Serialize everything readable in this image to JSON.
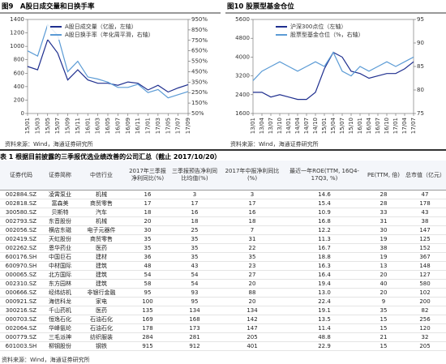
{
  "chart_data": [
    {
      "type": "line",
      "title": "图9　A股日成交量和日换手率",
      "categories": [
        "15/01",
        "15/03",
        "15/05",
        "15/07",
        "15/09",
        "15/11",
        "16/01",
        "16/03",
        "16/05",
        "16/07",
        "16/09",
        "16/11",
        "17/01",
        "17/03",
        "17/05",
        "17/07",
        "17/09"
      ],
      "series": [
        {
          "name": "A股日成交量（亿股，左轴）",
          "color": "#1f2f8f",
          "values": [
            700,
            650,
            1100,
            900,
            500,
            650,
            500,
            450,
            450,
            420,
            470,
            450,
            350,
            420,
            320,
            380,
            430
          ]
        },
        {
          "name": "A股日换手率（年化周平滑，右轴）",
          "color": "#5b9bd5",
          "axis": "y2",
          "values": [
            650,
            600,
            900,
            800,
            450,
            550,
            400,
            380,
            350,
            300,
            300,
            330,
            250,
            280,
            200,
            230,
            260
          ]
        }
      ],
      "ylim": [
        0,
        1400
      ],
      "yticks": [
        0,
        200,
        400,
        600,
        800,
        1000,
        1200,
        1400
      ],
      "y2lim": [
        50,
        950
      ],
      "y2ticks": [
        {
          "value": 50,
          "label": "50%"
        },
        {
          "value": 150,
          "label": "150%"
        },
        {
          "value": 250,
          "label": "250%"
        },
        {
          "value": 350,
          "label": "350%"
        },
        {
          "value": 450,
          "label": "450%"
        },
        {
          "value": 550,
          "label": "550%"
        },
        {
          "value": 650,
          "label": "650%"
        },
        {
          "value": 750,
          "label": "750%"
        },
        {
          "value": 850,
          "label": "850%"
        },
        {
          "value": 950,
          "label": "950%"
        }
      ],
      "legend": "top",
      "source": "资料来源：Wind，海通证券研究所"
    },
    {
      "type": "line",
      "title": "图10 股票型基金仓位",
      "categories": [
        "13/01",
        "13/04",
        "13/07",
        "13/10",
        "14/01",
        "14/04",
        "14/07",
        "14/10",
        "15/01",
        "15/04",
        "15/07",
        "15/10",
        "16/01",
        "16/04",
        "16/07",
        "16/10",
        "17/01",
        "17/04",
        "17/07"
      ],
      "series": [
        {
          "name": "沪深300点位（左轴）",
          "color": "#1f2f8f",
          "values": [
            2500,
            2500,
            2300,
            2400,
            2300,
            2200,
            2200,
            2500,
            3500,
            4200,
            4000,
            3400,
            3300,
            3100,
            3200,
            3300,
            3300,
            3500,
            3800
          ]
        },
        {
          "name": "股票型基金仓位（%，右轴）",
          "color": "#5b9bd5",
          "axis": "y2",
          "values": [
            82,
            84,
            85,
            86,
            85,
            84,
            85,
            86,
            85,
            88,
            84,
            83,
            85,
            84,
            85,
            86,
            85,
            86,
            87
          ]
        }
      ],
      "ylim": [
        1600,
        5600
      ],
      "yticks": [
        1600,
        2400,
        3200,
        4000,
        4800,
        5600
      ],
      "y2lim": [
        75,
        95
      ],
      "y2ticks": [
        75,
        80,
        85,
        90,
        95
      ],
      "legend": "top",
      "source": "资料来源：Wind，海通证券研究所"
    }
  ],
  "table": {
    "title": "表 1 根据目前披露的三季报优选业绩改善的公司汇总（截止 2017/10/20）",
    "header": [
      "证券代码",
      "证券简称",
      "中信行业",
      "2017年三季报净利同比(%)",
      "三季报预告净利同比均值(%)",
      "2017年中报净利同比(%)",
      "最近一年ROE(TTM, 16Q4-17Q3, %)",
      "PE(TTM, 倍)",
      "总市值（亿元）"
    ],
    "rows": [
      [
        "002884.SZ",
        "凌霄泵业",
        "机械",
        "16",
        "3",
        "3",
        "14.6",
        "28",
        "47"
      ],
      [
        "002818.SZ",
        "富森美",
        "商贸零售",
        "17",
        "17",
        "17",
        "15.4",
        "28",
        "178"
      ],
      [
        "300580.SZ",
        "贝斯特",
        "汽车",
        "18",
        "16",
        "16",
        "10.9",
        "33",
        "43"
      ],
      [
        "002793.SZ",
        "东音股份",
        "机械",
        "20",
        "18",
        "18",
        "16.8",
        "31",
        "38"
      ],
      [
        "002056.SZ",
        "横店东磁",
        "电子元器件",
        "30",
        "25",
        "7",
        "12.2",
        "30",
        "147"
      ],
      [
        "002419.SZ",
        "天虹股份",
        "商贸零售",
        "35",
        "35",
        "31",
        "11.3",
        "19",
        "125"
      ],
      [
        "002262.SZ",
        "恩华药业",
        "医药",
        "35",
        "35",
        "22",
        "16.7",
        "38",
        "152"
      ],
      [
        "600176.SH",
        "中国巨石",
        "建材",
        "36",
        "35",
        "35",
        "18.8",
        "19",
        "367"
      ],
      [
        "600970.SH",
        "中材国际",
        "建筑",
        "48",
        "43",
        "23",
        "16.3",
        "13",
        "148"
      ],
      [
        "000065.SZ",
        "北方国际",
        "建筑",
        "54",
        "54",
        "27",
        "16.4",
        "20",
        "127"
      ],
      [
        "002310.SZ",
        "东方园林",
        "建筑",
        "58",
        "54",
        "20",
        "19.4",
        "40",
        "580"
      ],
      [
        "000666.SZ",
        "经纬纺机",
        "非银行金融",
        "95",
        "93",
        "88",
        "13.0",
        "20",
        "102"
      ],
      [
        "000921.SZ",
        "海信科龙",
        "家电",
        "100",
        "95",
        "20",
        "22.4",
        "9",
        "200"
      ],
      [
        "300216.SZ",
        "千山药机",
        "医药",
        "135",
        "134",
        "134",
        "19.1",
        "35",
        "82"
      ],
      [
        "000703.SZ",
        "恒逸石化",
        "石油石化",
        "169",
        "168",
        "142",
        "13.5",
        "15",
        "256"
      ],
      [
        "002064.SZ",
        "华峰氨纶",
        "石油石化",
        "178",
        "173",
        "147",
        "11.4",
        "15",
        "120"
      ],
      [
        "000779.SZ",
        "三毛派神",
        "纺织服装",
        "284",
        "281",
        "205",
        "48.8",
        "21",
        "32"
      ],
      [
        "601003.SH",
        "柳钢股份",
        "钢铁",
        "915",
        "912",
        "401",
        "22.9",
        "15",
        "205"
      ]
    ],
    "source": "资料来源：Wind，海通证券研究所"
  }
}
